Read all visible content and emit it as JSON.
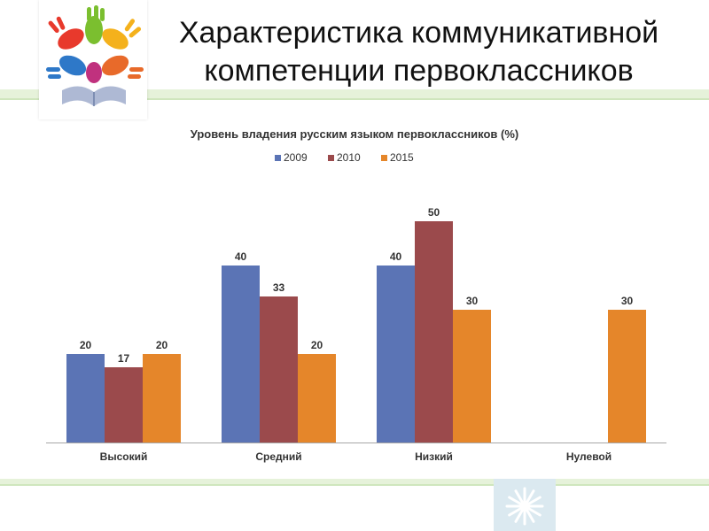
{
  "slide": {
    "title_line1": "Характеристика коммуникативной",
    "title_line2": "компетенции первоклассников",
    "logo_icon": "hands-book-icon",
    "corner_icon": "snowflake-emblem-icon"
  },
  "chart_data": {
    "type": "bar",
    "title": "Уровень владения русским языком первоклассников (%)",
    "categories": [
      "Высокий",
      "Средний",
      "Низкий",
      "Нулевой"
    ],
    "series": [
      {
        "name": "2009",
        "color": "#5b74b5",
        "values": [
          20,
          40,
          40,
          null
        ]
      },
      {
        "name": "2010",
        "color": "#9b4a4c",
        "values": [
          17,
          33,
          50,
          null
        ]
      },
      {
        "name": "2015",
        "color": "#e5862a",
        "values": [
          20,
          20,
          30,
          30
        ]
      }
    ],
    "ylim": [
      0,
      60
    ],
    "grid": false,
    "legend": "top-center",
    "data_labels": true,
    "xlabel": "",
    "ylabel": ""
  }
}
